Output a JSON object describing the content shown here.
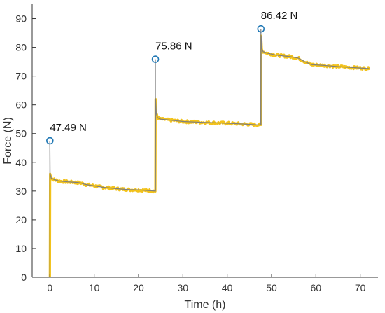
{
  "chart_data": {
    "type": "line",
    "title": "",
    "xlabel": "Time (h)",
    "ylabel": "Force (N)",
    "xlim": [
      -4,
      74
    ],
    "ylim": [
      0,
      95
    ],
    "x_ticks": [
      0,
      10,
      20,
      30,
      40,
      50,
      60,
      70
    ],
    "y_ticks": [
      0,
      10,
      20,
      30,
      40,
      50,
      60,
      70,
      80,
      90
    ],
    "grid": false,
    "colors": {
      "raw": "#f2c21b",
      "fit": "#7f7f7f",
      "marker": "#1f77b4",
      "axis": "#333333"
    },
    "series": [
      {
        "style": "raw-noisy",
        "x": [
          0,
          0.05,
          0.3,
          1,
          2,
          4,
          6,
          7,
          8,
          10,
          12,
          14,
          16,
          18,
          20,
          22,
          23.8,
          23.85,
          24.0,
          24.3,
          25,
          27,
          30,
          33,
          36,
          40,
          44,
          46,
          47.6,
          47.65,
          47.8,
          48.1,
          49,
          51,
          54,
          56,
          57.5,
          59,
          62,
          65,
          68,
          70,
          72
        ],
        "y": [
          0,
          36,
          34.5,
          34,
          33.5,
          33.2,
          33,
          32.8,
          32.3,
          31.8,
          31.3,
          31,
          30.7,
          30.5,
          30.4,
          30.2,
          30,
          62,
          57,
          55.5,
          55,
          54.7,
          54.2,
          54,
          53.8,
          53.6,
          53.3,
          53.1,
          53,
          84,
          79.5,
          78.5,
          78,
          77.3,
          76.8,
          76.3,
          75,
          74,
          73.7,
          73.3,
          73,
          72.8,
          72.6
        ]
      },
      {
        "style": "fit",
        "x": [
          0,
          0.05,
          0.3,
          1,
          2,
          4,
          6,
          7,
          8,
          10,
          12,
          14,
          16,
          18,
          20,
          22,
          23.8,
          23.85,
          24.0,
          24.3,
          25,
          27,
          30,
          33,
          36,
          40,
          44,
          46,
          47.6,
          47.65,
          47.8,
          48.1,
          49,
          51,
          54,
          56,
          57.5,
          59,
          62,
          65,
          68,
          70,
          72
        ],
        "y": [
          47.49,
          36,
          34.5,
          34,
          33.5,
          33.2,
          33,
          32.8,
          32.3,
          31.8,
          31.3,
          31,
          30.7,
          30.5,
          30.4,
          30.2,
          30,
          62,
          57,
          55.5,
          55,
          54.7,
          54.2,
          54,
          53.8,
          53.6,
          53.3,
          53.1,
          53,
          84,
          79.5,
          78.5,
          78,
          77.3,
          76.8,
          76.3,
          75,
          74,
          73.7,
          73.3,
          73,
          72.8,
          72.6
        ]
      }
    ],
    "peaks": [
      {
        "x": 0,
        "y": 47.49,
        "label": "47.49 N"
      },
      {
        "x": 23.8,
        "y": 75.86,
        "label": "75.86 N"
      },
      {
        "x": 47.6,
        "y": 86.42,
        "label": "86.42 N"
      }
    ],
    "vertical_lines": [
      {
        "x": 0,
        "y_from": 0,
        "y_to": 47.49
      },
      {
        "x": 23.8,
        "y_from": 30,
        "y_to": 75.86
      },
      {
        "x": 47.6,
        "y_from": 53,
        "y_to": 86.42
      }
    ]
  }
}
